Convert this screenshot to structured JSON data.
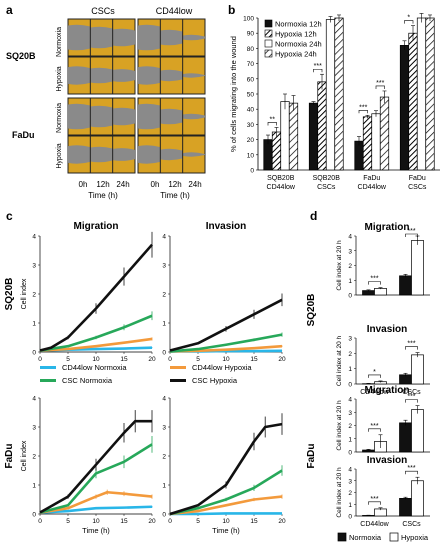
{
  "panels": {
    "a": "a",
    "b": "b",
    "c": "c",
    "d": "d"
  },
  "panel_a": {
    "col_headers": [
      "CSCs",
      "CD44low"
    ],
    "row_groups": [
      {
        "name": "SQ20B",
        "rows": [
          "Normoxia",
          "Hypoxia"
        ]
      },
      {
        "name": "FaDu",
        "rows": [
          "Normoxia",
          "Hypoxia"
        ]
      }
    ],
    "time_ticks": [
      "0h",
      "12h",
      "24h"
    ],
    "xlabel": "Time (h)",
    "colors": {
      "tile": "#d8a224",
      "wound": "#8a8a8a",
      "grid": "#222222"
    }
  },
  "chart_data": [
    {
      "id": "b",
      "type": "bar",
      "ylabel": "% of cells migrating into the wound",
      "ylim": [
        0,
        100
      ],
      "yticks": [
        0,
        10,
        20,
        30,
        40,
        50,
        60,
        70,
        80,
        90,
        100
      ],
      "categories": [
        "SQB20B\nCD44low",
        "SQB20B\nCSCs",
        "FaDu\nCD44low",
        "FaDu\nCSCs"
      ],
      "series": [
        {
          "name": "Normoxia 12h",
          "values": [
            20,
            44,
            19,
            82
          ],
          "errors": [
            3,
            1,
            3,
            3
          ],
          "fill": "#111111"
        },
        {
          "name": "Hypoxia 12h",
          "values": [
            25,
            58,
            35,
            90
          ],
          "errors": [
            3,
            5,
            1,
            5
          ],
          "fill": "hatch"
        },
        {
          "name": "Normoxia 24h",
          "values": [
            45,
            99,
            37,
            100
          ],
          "errors": [
            5,
            2,
            2,
            3
          ],
          "fill": "#ffffff"
        },
        {
          "name": "Hypoxia 24h",
          "values": [
            44,
            100,
            48,
            100
          ],
          "errors": [
            5,
            2,
            4,
            2
          ],
          "fill": "hatch-light"
        }
      ],
      "significance": [
        {
          "group": 0,
          "label": "**"
        },
        {
          "group": 1,
          "label": "***"
        },
        {
          "group": 2,
          "label": "***"
        },
        {
          "group": 2,
          "label": "***",
          "pair": "24h"
        },
        {
          "group": 3,
          "label": "*"
        }
      ],
      "legend": "top-left"
    },
    {
      "id": "c",
      "type": "line",
      "row_labels": [
        "SQ20B",
        "FaDu"
      ],
      "col_titles": [
        "Migration",
        "Invasion"
      ],
      "ylabel": "Cell index",
      "xlabel": "Time (h)",
      "xlim": [
        0,
        20
      ],
      "xticks": [
        0,
        5,
        10,
        15,
        20
      ],
      "ylim": [
        0,
        4
      ],
      "yticks": [
        0,
        1,
        2,
        3,
        4
      ],
      "legend": [
        {
          "name": "CD44low Normoxia",
          "color": "#29b6e8"
        },
        {
          "name": "CD44low Hypoxia",
          "color": "#f39a3c"
        },
        {
          "name": "CSC Normoxia",
          "color": "#27a85a"
        },
        {
          "name": "CSC  Hypoxia",
          "color": "#111111"
        }
      ],
      "subplots": [
        {
          "cell": "SQ20B-Migration",
          "series": [
            {
              "name": "CD44low Normoxia",
              "x": [
                0,
                5,
                10,
                15,
                20
              ],
              "y": [
                0.05,
                0.08,
                0.1,
                0.12,
                0.15
              ]
            },
            {
              "name": "CD44low Hypoxia",
              "x": [
                0,
                5,
                10,
                15,
                20
              ],
              "y": [
                0.05,
                0.1,
                0.2,
                0.32,
                0.45
              ]
            },
            {
              "name": "CSC Normoxia",
              "x": [
                0,
                5,
                10,
                15,
                20
              ],
              "y": [
                0.05,
                0.2,
                0.5,
                0.85,
                1.25
              ]
            },
            {
              "name": "CSC  Hypoxia",
              "x": [
                0,
                2,
                5,
                10,
                15,
                20
              ],
              "y": [
                0.05,
                0.15,
                0.5,
                1.5,
                2.6,
                3.7
              ]
            }
          ]
        },
        {
          "cell": "SQ20B-Invasion",
          "series": [
            {
              "name": "CD44low Normoxia",
              "x": [
                0,
                5,
                10,
                15,
                20
              ],
              "y": [
                0.02,
                0.02,
                0.03,
                0.03,
                0.04
              ]
            },
            {
              "name": "CD44low Hypoxia",
              "x": [
                0,
                5,
                10,
                15,
                20
              ],
              "y": [
                0.02,
                0.04,
                0.08,
                0.13,
                0.2
              ]
            },
            {
              "name": "CSC Normoxia",
              "x": [
                0,
                5,
                10,
                15,
                20
              ],
              "y": [
                0.02,
                0.1,
                0.25,
                0.42,
                0.6
              ]
            },
            {
              "name": "CSC  Hypoxia",
              "x": [
                0,
                5,
                10,
                15,
                20
              ],
              "y": [
                0.05,
                0.3,
                0.8,
                1.3,
                1.8
              ]
            }
          ]
        },
        {
          "cell": "FaDu-Migration",
          "series": [
            {
              "name": "CD44low Normoxia",
              "x": [
                0,
                5,
                10,
                15,
                20
              ],
              "y": [
                0.05,
                0.1,
                0.2,
                0.22,
                0.25
              ]
            },
            {
              "name": "CD44low Hypoxia",
              "x": [
                0,
                5,
                10,
                12,
                15,
                20
              ],
              "y": [
                0.05,
                0.2,
                0.6,
                0.75,
                0.7,
                0.6
              ]
            },
            {
              "name": "CSC Normoxia",
              "x": [
                0,
                5,
                10,
                15,
                20
              ],
              "y": [
                0.05,
                0.3,
                1.4,
                1.8,
                2.4
              ]
            },
            {
              "name": "CSC  Hypoxia",
              "x": [
                0,
                5,
                10,
                15,
                17,
                20
              ],
              "y": [
                0.05,
                0.6,
                1.7,
                2.8,
                3.2,
                3.2
              ]
            }
          ]
        },
        {
          "cell": "FaDu-Invasion",
          "series": [
            {
              "name": "CD44low Normoxia",
              "x": [
                0,
                5,
                10,
                15,
                20
              ],
              "y": [
                0.0,
                0.0,
                0.02,
                0.02,
                0.02
              ]
            },
            {
              "name": "CD44low Hypoxia",
              "x": [
                0,
                5,
                10,
                15,
                20
              ],
              "y": [
                0.0,
                0.1,
                0.3,
                0.5,
                0.6
              ]
            },
            {
              "name": "CSC Normoxia",
              "x": [
                0,
                5,
                10,
                15,
                20
              ],
              "y": [
                0.0,
                0.2,
                0.5,
                0.9,
                1.5
              ]
            },
            {
              "name": "CSC  Hypoxia",
              "x": [
                0,
                5,
                10,
                15,
                17,
                20
              ],
              "y": [
                0.0,
                0.3,
                1.0,
                2.5,
                3.0,
                3.1
              ]
            }
          ]
        }
      ]
    },
    {
      "id": "d",
      "type": "bar",
      "row_labels": [
        "SQ20B",
        "FaDu"
      ],
      "ylabel": "Cell index at 20 h",
      "categories": [
        "CD44low",
        "CSCs"
      ],
      "legend": [
        {
          "name": "Normoxia",
          "fill": "#111111"
        },
        {
          "name": "Hypoxia",
          "fill": "#ffffff"
        }
      ],
      "subplots": [
        {
          "title": "Migration",
          "ylim": [
            0,
            4
          ],
          "yticks": [
            0,
            1,
            2,
            3,
            4
          ],
          "normoxia": [
            0.3,
            1.3
          ],
          "hypoxia": [
            0.45,
            3.7
          ],
          "err_n": [
            0.05,
            0.1
          ],
          "err_h": [
            0.05,
            0.3
          ],
          "sig": [
            "***",
            "***"
          ]
        },
        {
          "title": "Invasion",
          "ylim": [
            0,
            3
          ],
          "yticks": [
            0,
            1,
            2,
            3
          ],
          "normoxia": [
            0.02,
            0.6
          ],
          "hypoxia": [
            0.15,
            1.9
          ],
          "err_n": [
            0.02,
            0.1
          ],
          "err_h": [
            0.05,
            0.15
          ],
          "sig": [
            "*",
            "***"
          ]
        },
        {
          "title": "Migration",
          "ylim": [
            0,
            4
          ],
          "yticks": [
            0,
            1,
            2,
            3,
            4
          ],
          "normoxia": [
            0.15,
            2.2
          ],
          "hypoxia": [
            0.8,
            3.2
          ],
          "err_n": [
            0.05,
            0.2
          ],
          "err_h": [
            0.5,
            0.3
          ],
          "sig": [
            "***",
            "***"
          ]
        },
        {
          "title": "Invasion",
          "ylim": [
            0,
            4
          ],
          "yticks": [
            0,
            1,
            2,
            3,
            4
          ],
          "normoxia": [
            0.05,
            1.5
          ],
          "hypoxia": [
            0.6,
            3.0
          ],
          "err_n": [
            0.02,
            0.1
          ],
          "err_h": [
            0.1,
            0.3
          ],
          "sig": [
            "***",
            "***"
          ]
        }
      ]
    }
  ]
}
